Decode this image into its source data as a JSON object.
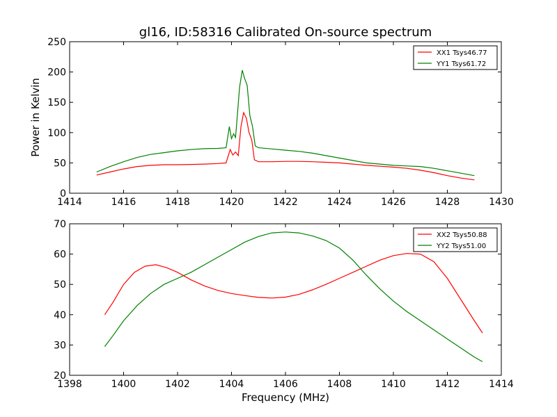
{
  "chart_data": [
    {
      "type": "line",
      "title": "gl16, ID:58316 Calibrated On-source spectrum",
      "xlabel": "",
      "ylabel": "Power in Kelvin",
      "xlim": [
        1414,
        1430
      ],
      "ylim": [
        0,
        250
      ],
      "xticks": [
        "1414",
        "1416",
        "1418",
        "1420",
        "1422",
        "1424",
        "1426",
        "1428",
        "1430"
      ],
      "yticks": [
        "0",
        "50",
        "100",
        "150",
        "200",
        "250"
      ],
      "legend": "top-right",
      "grid": false,
      "series": [
        {
          "name": "XX1 Tsys46.77",
          "color": "#ff0000",
          "x": [
            1415.0,
            1415.5,
            1416.0,
            1416.5,
            1417.0,
            1417.5,
            1418.0,
            1418.5,
            1419.0,
            1419.5,
            1419.8,
            1419.95,
            1420.05,
            1420.15,
            1420.25,
            1420.35,
            1420.45,
            1420.55,
            1420.65,
            1420.75,
            1420.85,
            1421.0,
            1421.5,
            1422.0,
            1422.5,
            1423.0,
            1423.5,
            1424.0,
            1424.5,
            1425.0,
            1425.5,
            1426.0,
            1426.5,
            1427.0,
            1427.5,
            1428.0,
            1428.5,
            1429.0
          ],
          "values": [
            30,
            35,
            40,
            44,
            46,
            47,
            47,
            47.5,
            48,
            49,
            50,
            72,
            63,
            68,
            62,
            110,
            133,
            124,
            100,
            88,
            55,
            52,
            52,
            52.5,
            52.5,
            52,
            51,
            50,
            48,
            46,
            44.5,
            43,
            41,
            38,
            34,
            29,
            25,
            22
          ]
        },
        {
          "name": "YY1 Tsys61.72",
          "color": "#008000",
          "x": [
            1415.0,
            1415.5,
            1416.0,
            1416.5,
            1417.0,
            1417.5,
            1418.0,
            1418.5,
            1419.0,
            1419.5,
            1419.8,
            1419.92,
            1420.0,
            1420.08,
            1420.15,
            1420.22,
            1420.3,
            1420.4,
            1420.48,
            1420.58,
            1420.68,
            1420.78,
            1420.88,
            1421.0,
            1421.5,
            1422.0,
            1422.5,
            1423.0,
            1423.5,
            1424.0,
            1424.5,
            1425.0,
            1425.5,
            1426.0,
            1426.5,
            1427.0,
            1427.5,
            1428.0,
            1428.5,
            1429.0
          ],
          "values": [
            35,
            44,
            52,
            59,
            64,
            67,
            70,
            72,
            73.5,
            74,
            75,
            110,
            90,
            98,
            92,
            130,
            175,
            203,
            190,
            178,
            128,
            110,
            78,
            75,
            73,
            71,
            69,
            66,
            62,
            58,
            54,
            50,
            48,
            46,
            45,
            44,
            41,
            37,
            33,
            29
          ]
        }
      ]
    },
    {
      "type": "line",
      "title": "",
      "xlabel": "Frequency (MHz)",
      "ylabel": "",
      "xlim": [
        1398,
        1414
      ],
      "ylim": [
        20,
        70
      ],
      "xticks": [
        "1398",
        "1400",
        "1402",
        "1404",
        "1406",
        "1408",
        "1410",
        "1412",
        "1414"
      ],
      "yticks": [
        "20",
        "30",
        "40",
        "50",
        "60",
        "70"
      ],
      "legend": "top-right",
      "grid": false,
      "series": [
        {
          "name": "XX2 Tsys50.88",
          "color": "#ff0000",
          "x": [
            1399.3,
            1399.6,
            1400.0,
            1400.4,
            1400.8,
            1401.2,
            1401.6,
            1402.0,
            1402.5,
            1403.0,
            1403.5,
            1404.0,
            1404.5,
            1405.0,
            1405.5,
            1406.0,
            1406.5,
            1407.0,
            1407.5,
            1408.0,
            1408.5,
            1409.0,
            1409.5,
            1410.0,
            1410.5,
            1411.0,
            1411.5,
            1412.0,
            1412.5,
            1413.0,
            1413.3
          ],
          "values": [
            40,
            44,
            50,
            54,
            56,
            56.5,
            55.5,
            54,
            51.5,
            49.5,
            48,
            47,
            46.3,
            45.7,
            45.5,
            45.8,
            46.7,
            48.2,
            50,
            52,
            54,
            56,
            58,
            59.5,
            60.2,
            60,
            57.5,
            52,
            45,
            38,
            34
          ]
        },
        {
          "name": "YY2 Tsys51.00",
          "color": "#008000",
          "x": [
            1399.3,
            1399.6,
            1400.0,
            1400.5,
            1401.0,
            1401.5,
            1402.0,
            1402.5,
            1403.0,
            1403.5,
            1404.0,
            1404.5,
            1405.0,
            1405.5,
            1406.0,
            1406.5,
            1407.0,
            1407.5,
            1408.0,
            1408.5,
            1409.0,
            1409.5,
            1410.0,
            1410.5,
            1411.0,
            1411.5,
            1412.0,
            1412.5,
            1413.0,
            1413.3
          ],
          "values": [
            29.5,
            33,
            38,
            43,
            47,
            50,
            52,
            54,
            56.5,
            59,
            61.5,
            64,
            65.8,
            67,
            67.3,
            67,
            66,
            64.5,
            62,
            58,
            53,
            48.5,
            44.5,
            41,
            38,
            35,
            32,
            29,
            26,
            24.5
          ]
        }
      ]
    }
  ]
}
